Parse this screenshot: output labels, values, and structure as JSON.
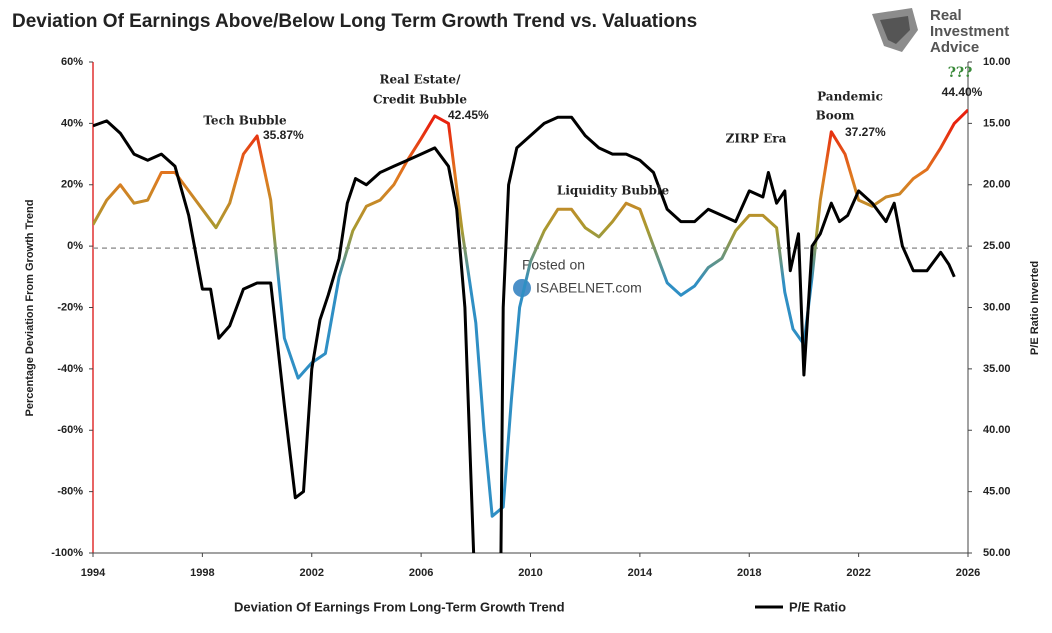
{
  "chart_data": {
    "type": "line",
    "title": "Deviation Of Earnings Above/Below Long Term Growth Trend vs. Valuations",
    "brand": [
      "Real",
      "Investment",
      "Advice"
    ],
    "watermark": [
      "Posted on",
      "ISABELNET.com"
    ],
    "ylabel": "Percentage Deviation From Growth Trend",
    "y2label": "P/E Ratio Inverted",
    "y2_inverted": true,
    "xlim": [
      1994,
      2026
    ],
    "xticks": [
      1994,
      1998,
      2002,
      2006,
      2010,
      2014,
      2018,
      2022,
      2026
    ],
    "ylim": [
      -100,
      60
    ],
    "yticks": [
      {
        "value": -100,
        "label": "-100%"
      },
      {
        "value": -80,
        "label": "-80%"
      },
      {
        "value": -60,
        "label": "-60%"
      },
      {
        "value": -40,
        "label": "-40%"
      },
      {
        "value": -20,
        "label": "-20%"
      },
      {
        "value": 0,
        "label": "0%"
      },
      {
        "value": 20,
        "label": "20%"
      },
      {
        "value": 40,
        "label": "40%"
      },
      {
        "value": 60,
        "label": "60%"
      }
    ],
    "y2lim": [
      10,
      50
    ],
    "y2ticks": [
      {
        "value": 10,
        "label": "10.00"
      },
      {
        "value": 15,
        "label": "15.00"
      },
      {
        "value": 20,
        "label": "20.00"
      },
      {
        "value": 25,
        "label": "25.00"
      },
      {
        "value": 30,
        "label": "30.00"
      },
      {
        "value": 35,
        "label": "35.00"
      },
      {
        "value": 40,
        "label": "40.00"
      },
      {
        "value": 45,
        "label": "45.00"
      },
      {
        "value": 50,
        "label": "50.00"
      }
    ],
    "reference_y": 0,
    "gradient_stops": [
      {
        "value": 40,
        "color": "#e8220e"
      },
      {
        "value": 25,
        "color": "#e07a20"
      },
      {
        "value": 5,
        "color": "#a89a30"
      },
      {
        "value": -12,
        "color": "#2f8fc4"
      }
    ],
    "annotations": [
      "Tech Bubble",
      "35.87%",
      "Real Estate/",
      "Credit Bubble",
      "42.45%",
      "Liquidity Bubble",
      "ZIRP Era",
      "Pandemic",
      "Boom",
      "37.27%",
      "???",
      "44.40%"
    ],
    "series": [
      {
        "name": "Deviation Of Earnings From Long-Term Growth Trend",
        "color": "gradient",
        "x": [
          1994.0,
          1994.5,
          1995.0,
          1995.5,
          1996.0,
          1996.5,
          1997.0,
          1997.5,
          1998.0,
          1998.5,
          1999.0,
          1999.5,
          2000.0,
          2000.5,
          2001.0,
          2001.5,
          2002.0,
          2002.5,
          2003.0,
          2003.5,
          2004.0,
          2004.5,
          2005.0,
          2005.5,
          2006.0,
          2006.5,
          2007.0,
          2007.5,
          2008.0,
          2008.3,
          2008.6,
          2009.0,
          2009.3,
          2009.6,
          2010.0,
          2010.5,
          2011.0,
          2011.5,
          2012.0,
          2012.5,
          2013.0,
          2013.5,
          2014.0,
          2014.5,
          2015.0,
          2015.5,
          2016.0,
          2016.5,
          2017.0,
          2017.5,
          2018.0,
          2018.5,
          2019.0,
          2019.3,
          2019.6,
          2020.0,
          2020.3,
          2020.6,
          2021.0,
          2021.5,
          2022.0,
          2022.5,
          2023.0,
          2023.5,
          2024.0,
          2024.5,
          2025.0,
          2025.5,
          2026.0
        ],
        "values": [
          7,
          15,
          20,
          14,
          15,
          24,
          24,
          18,
          12,
          6,
          14,
          30,
          35.87,
          15,
          -30,
          -43,
          -38,
          -35,
          -10,
          5,
          13,
          15,
          20,
          28,
          35,
          42.45,
          40,
          5,
          -25,
          -60,
          -88,
          -85,
          -50,
          -20,
          -5,
          5,
          12,
          12,
          6,
          3,
          8,
          14,
          12,
          0,
          -12,
          -16,
          -13,
          -7,
          -4,
          5,
          10,
          10,
          6,
          -15,
          -27,
          -32,
          -10,
          15,
          37.27,
          30,
          15,
          13,
          16,
          17,
          22,
          25,
          32,
          40,
          44.4
        ]
      },
      {
        "name": "P/E Ratio",
        "color": "#000000",
        "axis": "y2",
        "x": [
          1994.0,
          1994.5,
          1995.0,
          1995.5,
          1996.0,
          1996.5,
          1997.0,
          1997.5,
          1998.0,
          1998.3,
          1998.6,
          1999.0,
          1999.5,
          2000.0,
          2000.5,
          2001.0,
          2001.4,
          2001.7,
          2002.0,
          2002.3,
          2002.6,
          2003.0,
          2003.3,
          2003.6,
          2004.0,
          2004.5,
          2005.0,
          2005.5,
          2006.0,
          2006.5,
          2007.0,
          2007.3,
          2007.6,
          2008.0,
          2008.9,
          2009.0,
          2009.2,
          2009.5,
          2010.0,
          2010.5,
          2011.0,
          2011.5,
          2012.0,
          2012.5,
          2013.0,
          2013.5,
          2014.0,
          2014.5,
          2015.0,
          2015.5,
          2016.0,
          2016.5,
          2017.0,
          2017.5,
          2018.0,
          2018.5,
          2018.7,
          2019.0,
          2019.3,
          2019.5,
          2019.8,
          2020.0,
          2020.3,
          2020.6,
          2021.0,
          2021.3,
          2021.6,
          2022.0,
          2022.5,
          2023.0,
          2023.3,
          2023.6,
          2024.0,
          2024.5,
          2025.0,
          2025.3,
          2025.5
        ],
        "values": [
          15.2,
          14.8,
          15.8,
          17.5,
          18.0,
          17.5,
          18.5,
          22.5,
          28.5,
          28.5,
          32.5,
          31.5,
          28.5,
          28,
          28,
          38,
          45.5,
          45,
          35,
          31,
          29,
          26,
          21.5,
          19.5,
          20,
          19,
          18.5,
          18,
          17.5,
          17,
          18.5,
          22,
          30,
          55,
          55,
          30,
          20,
          17,
          16,
          15,
          14.5,
          14.5,
          16,
          17,
          17.5,
          17.5,
          18,
          19,
          22,
          23,
          23,
          22,
          22.5,
          23,
          20.5,
          21,
          19,
          21.5,
          20.5,
          27,
          24,
          35.5,
          25,
          24,
          21.5,
          23,
          22.5,
          20.5,
          21.5,
          23,
          21.5,
          25,
          27,
          27,
          25.5,
          26.5,
          27.5
        ]
      }
    ]
  }
}
